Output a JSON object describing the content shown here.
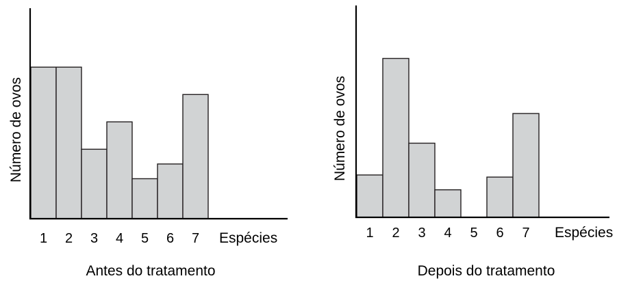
{
  "chart_data": [
    {
      "type": "bar",
      "categories": [
        "1",
        "2",
        "3",
        "4",
        "5",
        "6",
        "7"
      ],
      "values": [
        7.2,
        7.2,
        3.3,
        4.6,
        1.9,
        2.6,
        5.9
      ],
      "title": "Antes do tratamento",
      "xlabel": "Espécies",
      "ylabel": "Número de ovos",
      "ylim": [
        0,
        10
      ],
      "grid": false,
      "colors": {
        "bar_fill": "#d1d3d4",
        "bar_stroke": "#231f20"
      }
    },
    {
      "type": "bar",
      "categories": [
        "1",
        "2",
        "3",
        "4",
        "5",
        "6",
        "7"
      ],
      "values": [
        2.0,
        7.5,
        3.5,
        1.3,
        0,
        1.9,
        4.9
      ],
      "title": "Depois do tratamento",
      "xlabel": "Espécies",
      "ylabel": "Número de ovos",
      "ylim": [
        0,
        10
      ],
      "grid": false,
      "colors": {
        "bar_fill": "#d1d3d4",
        "bar_stroke": "#231f20"
      }
    }
  ]
}
